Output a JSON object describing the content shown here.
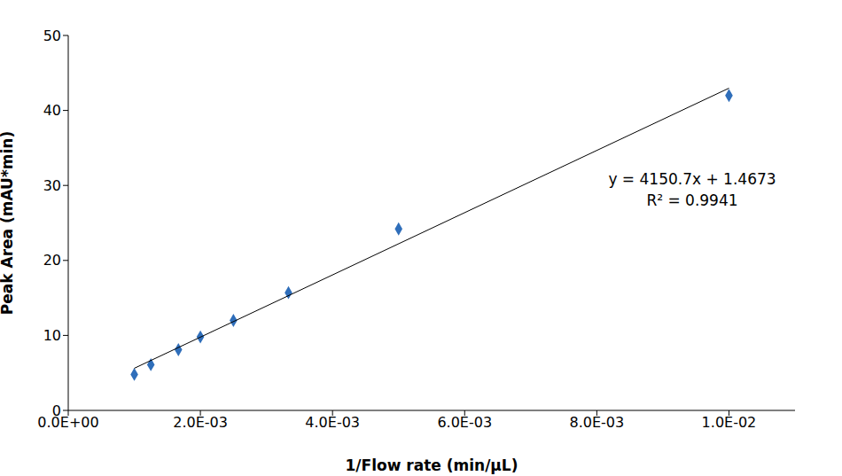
{
  "chart_data": {
    "type": "scatter",
    "x_label": "1/Flow rate (min/μL)",
    "y_label": "Peak Area (mAU*min)",
    "xlim": [
      0,
      0.011
    ],
    "xticks": [
      {
        "value": 0,
        "label": "0.0E+00"
      },
      {
        "value": 0.002,
        "label": "2.0E-03"
      },
      {
        "value": 0.004,
        "label": "4.0E-03"
      },
      {
        "value": 0.006,
        "label": "6.0E-03"
      },
      {
        "value": 0.008,
        "label": "8.0E-03"
      },
      {
        "value": 0.01,
        "label": "1.0E-02"
      }
    ],
    "ylim": [
      0,
      50
    ],
    "yticks": [
      0,
      10,
      20,
      30,
      40,
      50
    ],
    "grid": false,
    "annotations": [
      "y = 4150.7x + 1.4673",
      "R² = 0.9941"
    ],
    "series": [
      {
        "type": "scatter",
        "marker": "diamond",
        "color": "#2f6eba",
        "x": [
          0.001,
          0.00125,
          0.001667,
          0.002,
          0.0025,
          0.003333,
          0.005,
          0.01
        ],
        "values": [
          4.8,
          6.1,
          8.1,
          9.8,
          12.0,
          15.7,
          24.2,
          42.0
        ]
      },
      {
        "type": "line",
        "line_style": "solid",
        "color": "#000000",
        "x": [
          0.001,
          0.01
        ],
        "values": [
          5.62,
          42.97
        ]
      }
    ]
  }
}
